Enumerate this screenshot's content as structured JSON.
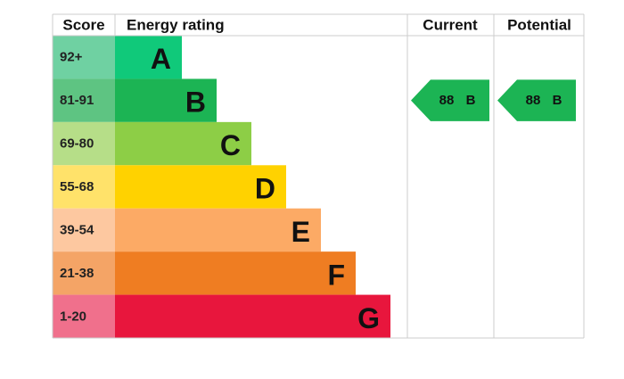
{
  "header": {
    "score": "Score",
    "rating": "Energy rating",
    "current": "Current",
    "potential": "Potential"
  },
  "bands": [
    {
      "score": "92+",
      "letter": "A",
      "color": "#10c97a",
      "light": "#6fd1a2"
    },
    {
      "score": "81-91",
      "letter": "B",
      "color": "#1cb454",
      "light": "#5ec482"
    },
    {
      "score": "69-80",
      "letter": "C",
      "color": "#8dce46",
      "light": "#b6de88"
    },
    {
      "score": "55-68",
      "letter": "D",
      "color": "#ffd200",
      "light": "#ffe26a"
    },
    {
      "score": "39-54",
      "letter": "E",
      "color": "#fcaa65",
      "light": "#fdc8a0"
    },
    {
      "score": "21-38",
      "letter": "F",
      "color": "#ef7d22",
      "light": "#f4a466"
    },
    {
      "score": "1-20",
      "letter": "G",
      "color": "#e8163d",
      "light": "#f0708c"
    }
  ],
  "current": {
    "value": 88,
    "band": "B"
  },
  "potential": {
    "value": 88,
    "band": "B"
  }
}
